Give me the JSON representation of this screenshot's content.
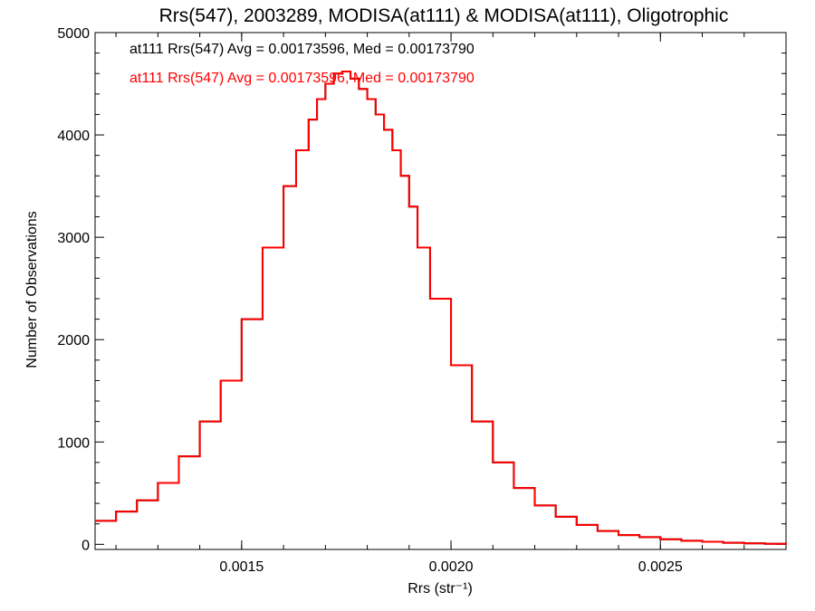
{
  "chart_data": {
    "type": "line",
    "step": true,
    "title": "Rrs(547), 2003289, MODISA(at111) & MODISA(at111), Oligotrophic",
    "xlabel": "Rrs (str⁻¹)",
    "ylabel": "Number of Observations",
    "xlim": [
      0.00115,
      0.0028
    ],
    "ylim": [
      -50,
      5000
    ],
    "xticks": [
      0.0015,
      0.002,
      0.0025
    ],
    "xtick_labels": [
      "0.0015",
      "0.0020",
      "0.0025"
    ],
    "yticks": [
      0,
      1000,
      2000,
      3000,
      4000,
      5000
    ],
    "ytick_labels": [
      "0",
      "1000",
      "2000",
      "3000",
      "4000",
      "5000"
    ],
    "annotations": [
      {
        "text": "at111 Rrs(547) Avg = 0.00173596, Med = 0.00173790",
        "color": "#000000"
      },
      {
        "text": "at111 Rrs(547) Avg = 0.00173596, Med = 0.00173790",
        "color": "#ff0000"
      }
    ],
    "series": [
      {
        "color": "#000000",
        "x": [
          0.00115,
          0.0012,
          0.00125,
          0.0013,
          0.00135,
          0.0014,
          0.00145,
          0.0015,
          0.00155,
          0.0016,
          0.00163,
          0.00166,
          0.00168,
          0.0017,
          0.00172,
          0.00174,
          0.00176,
          0.00178,
          0.0018,
          0.00182,
          0.00184,
          0.00186,
          0.00188,
          0.0019,
          0.00192,
          0.00195,
          0.002,
          0.00205,
          0.0021,
          0.00215,
          0.0022,
          0.00225,
          0.0023,
          0.00235,
          0.0024,
          0.00245,
          0.0025,
          0.00255,
          0.0026,
          0.00265,
          0.0027,
          0.00275,
          0.0028
        ],
        "y": [
          230,
          320,
          430,
          600,
          860,
          1200,
          1600,
          2200,
          2900,
          3500,
          3850,
          4150,
          4350,
          4500,
          4600,
          4620,
          4550,
          4450,
          4350,
          4200,
          4050,
          3850,
          3600,
          3300,
          2900,
          2400,
          1750,
          1200,
          800,
          550,
          380,
          270,
          190,
          130,
          90,
          70,
          50,
          35,
          25,
          15,
          10,
          5,
          0
        ]
      },
      {
        "color": "#ff0000",
        "x": [
          0.00115,
          0.0012,
          0.00125,
          0.0013,
          0.00135,
          0.0014,
          0.00145,
          0.0015,
          0.00155,
          0.0016,
          0.00163,
          0.00166,
          0.00168,
          0.0017,
          0.00172,
          0.00174,
          0.00176,
          0.00178,
          0.0018,
          0.00182,
          0.00184,
          0.00186,
          0.00188,
          0.0019,
          0.00192,
          0.00195,
          0.002,
          0.00205,
          0.0021,
          0.00215,
          0.0022,
          0.00225,
          0.0023,
          0.00235,
          0.0024,
          0.00245,
          0.0025,
          0.00255,
          0.0026,
          0.00265,
          0.0027,
          0.00275,
          0.0028
        ],
        "y": [
          230,
          320,
          430,
          600,
          860,
          1200,
          1600,
          2200,
          2900,
          3500,
          3850,
          4150,
          4350,
          4500,
          4600,
          4620,
          4550,
          4450,
          4350,
          4200,
          4050,
          3850,
          3600,
          3300,
          2900,
          2400,
          1750,
          1200,
          800,
          550,
          380,
          270,
          190,
          130,
          90,
          70,
          50,
          35,
          25,
          15,
          10,
          5,
          0
        ]
      }
    ]
  }
}
